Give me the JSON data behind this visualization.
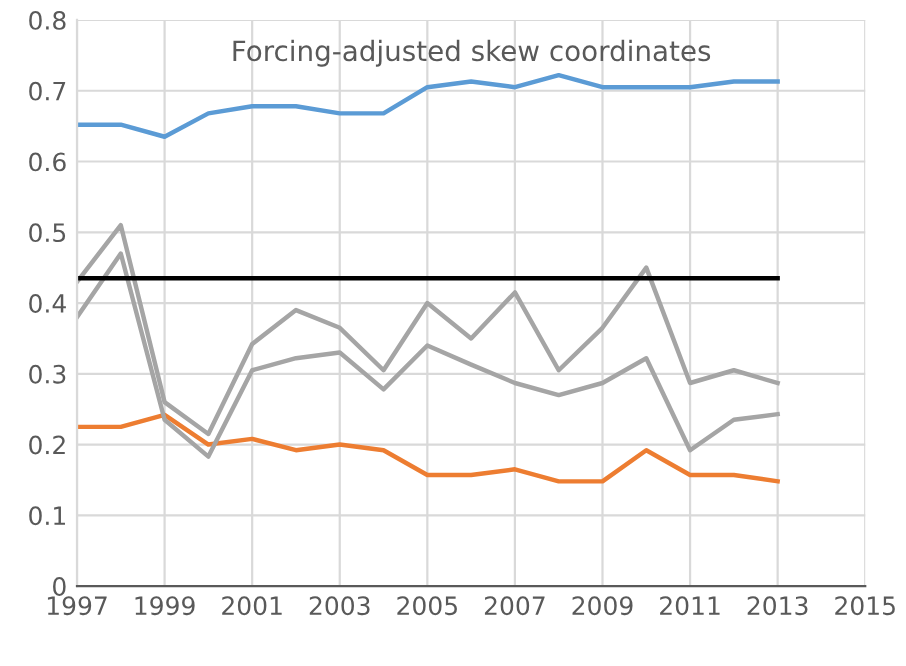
{
  "chart_data": {
    "type": "line",
    "title": "Forcing-adjusted skew coordinates",
    "x": [
      1997,
      1998,
      1999,
      2000,
      2001,
      2002,
      2003,
      2004,
      2005,
      2006,
      2007,
      2008,
      2009,
      2010,
      2011,
      2012,
      2013
    ],
    "series": [
      {
        "color": "#5b9bd5",
        "values": [
          0.652,
          0.652,
          0.635,
          0.668,
          0.678,
          0.678,
          0.668,
          0.668,
          0.705,
          0.713,
          0.705,
          0.722,
          0.705,
          0.705,
          0.705,
          0.713,
          0.713
        ]
      },
      {
        "color": "#ed7d31",
        "values": [
          0.225,
          0.225,
          0.242,
          0.2,
          0.208,
          0.192,
          0.2,
          0.192,
          0.157,
          0.157,
          0.165,
          0.148,
          0.148,
          0.192,
          0.157,
          0.157,
          0.148
        ]
      },
      {
        "color": "#a5a5a5",
        "values": [
          0.43,
          0.51,
          0.26,
          0.215,
          0.342,
          0.39,
          0.365,
          0.305,
          0.4,
          0.35,
          0.415,
          0.305,
          0.365,
          0.45,
          0.287,
          0.305,
          0.287
        ]
      },
      {
        "color": "#a5a5a5",
        "values": [
          0.38,
          0.47,
          0.235,
          0.183,
          0.305,
          0.322,
          0.33,
          0.278,
          0.34,
          0.313,
          0.287,
          0.27,
          0.287,
          0.322,
          0.192,
          0.235,
          0.243
        ]
      },
      {
        "color": "#000000",
        "x": [
          1997,
          2013
        ],
        "values": [
          0.435,
          0.435
        ]
      }
    ],
    "xlim": [
      1997,
      2015
    ],
    "xticks": [
      1997,
      1999,
      2001,
      2003,
      2005,
      2007,
      2009,
      2011,
      2013,
      2015
    ],
    "ylim": [
      0,
      0.8
    ],
    "yticks": [
      0,
      0.1,
      0.2,
      0.3,
      0.4,
      0.5,
      0.6,
      0.7,
      0.8
    ],
    "grid": true,
    "marker": "none",
    "line_style": "solid"
  }
}
